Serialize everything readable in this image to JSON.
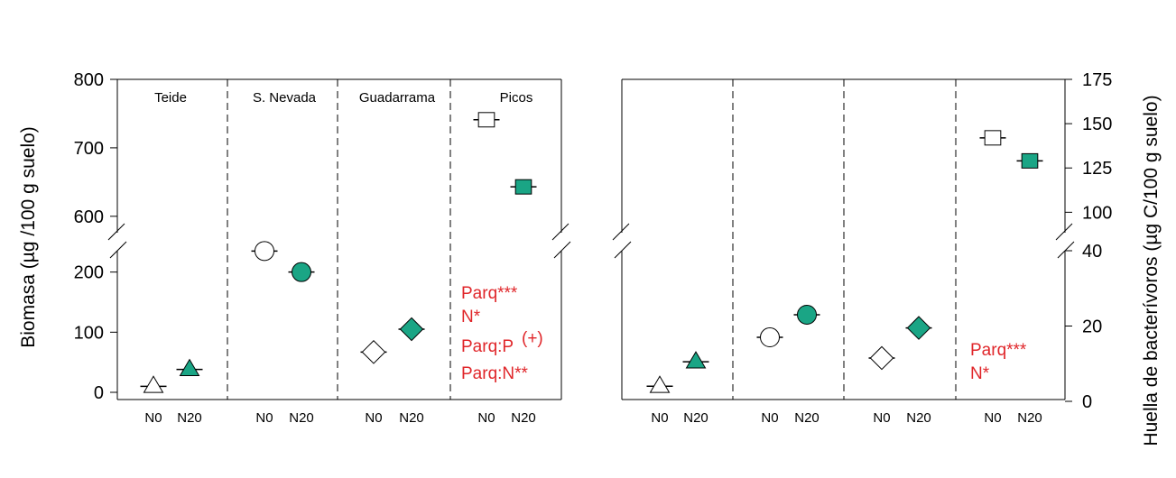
{
  "colors": {
    "filled": "#1aa585",
    "stat": "#e0262a",
    "open": "#ffffff"
  },
  "chart_data": [
    {
      "type": "scatter",
      "ylabel": "Biomasa (µg /100 g suelo)",
      "y_axis_side": "left",
      "y_broken": true,
      "ylim_lower": [
        0,
        240
      ],
      "ylim_upper": [
        580,
        800
      ],
      "yticks_lower": [
        0,
        100,
        200
      ],
      "yticks_upper": [
        600,
        700,
        800
      ],
      "sites": [
        "Teide",
        "S. Nevada",
        "Guadarrama",
        "Picos"
      ],
      "treatments": [
        "N0",
        "N20"
      ],
      "series": [
        {
          "site": "Teide",
          "marker": "triangle",
          "points": [
            {
              "treatment": "N0",
              "y": 10,
              "err": 3
            },
            {
              "treatment": "N20",
              "y": 38,
              "err": 3
            }
          ]
        },
        {
          "site": "S. Nevada",
          "marker": "circle",
          "points": [
            {
              "treatment": "N0",
              "y": 235,
              "err": 4
            },
            {
              "treatment": "N20",
              "y": 200,
              "err": 4
            }
          ]
        },
        {
          "site": "Guadarrama",
          "marker": "diamond",
          "points": [
            {
              "treatment": "N0",
              "y": 67,
              "err": 4
            },
            {
              "treatment": "N20",
              "y": 105,
              "err": 4
            }
          ]
        },
        {
          "site": "Picos",
          "marker": "square",
          "points": [
            {
              "treatment": "N0",
              "y": 741,
              "err": 4
            },
            {
              "treatment": "N20",
              "y": 643,
              "err": 4
            }
          ]
        }
      ],
      "stats": [
        "Parq***",
        "N*",
        "Parq:P",
        "(+)",
        "Parq:N**"
      ]
    },
    {
      "type": "scatter",
      "ylabel": "Huella de bacterívoros (µg C/100 g suelo)",
      "y_axis_side": "right",
      "y_broken": true,
      "ylim_lower": [
        0,
        40
      ],
      "ylim_upper": [
        90,
        175
      ],
      "yticks_lower": [
        0,
        20,
        40
      ],
      "yticks_upper": [
        100,
        125,
        150,
        175
      ],
      "sites": [
        "Teide",
        "S. Nevada",
        "Guadarrama",
        "Picos"
      ],
      "treatments": [
        "N0",
        "N20"
      ],
      "series": [
        {
          "site": "Teide",
          "marker": "triangle",
          "points": [
            {
              "treatment": "N0",
              "y": 4,
              "err": 0.8
            },
            {
              "treatment": "N20",
              "y": 10.5,
              "err": 0.8
            }
          ]
        },
        {
          "site": "S. Nevada",
          "marker": "circle",
          "points": [
            {
              "treatment": "N0",
              "y": 17,
              "err": 0.8
            },
            {
              "treatment": "N20",
              "y": 23,
              "err": 0.8
            }
          ]
        },
        {
          "site": "Guadarrama",
          "marker": "diamond",
          "points": [
            {
              "treatment": "N0",
              "y": 11.5,
              "err": 1.2
            },
            {
              "treatment": "N20",
              "y": 19.5,
              "err": 1.2
            }
          ]
        },
        {
          "site": "Picos",
          "marker": "square",
          "points": [
            {
              "treatment": "N0",
              "y": 142,
              "err": 2
            },
            {
              "treatment": "N20",
              "y": 129,
              "err": 2
            }
          ]
        }
      ],
      "stats": [
        "Parq***",
        "N*"
      ]
    }
  ]
}
